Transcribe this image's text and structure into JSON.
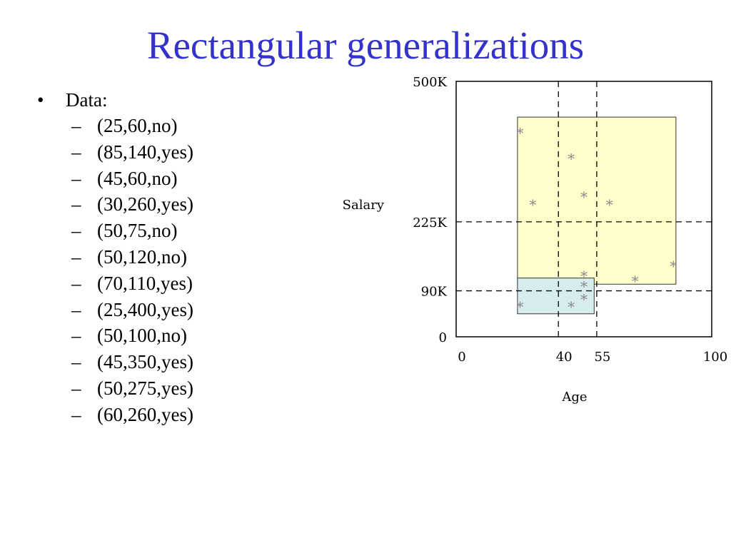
{
  "slide": {
    "title": "Rectangular generalizations",
    "bullet": {
      "marker": "•",
      "label": "Data:",
      "items": [
        "(25,60,no)",
        "(85,140,yes)",
        "(45,60,no)",
        "(30,260,yes)",
        "(50,75,no)",
        "(50,120,no)",
        "(70,110,yes)",
        "(25,400,yes)",
        "(50,100,no)",
        "(45,350,yes)",
        "(50,275,yes)",
        "(60,260,yes)"
      ]
    }
  },
  "chart_data": {
    "type": "scatter",
    "title": "",
    "xlabel": "Age",
    "ylabel": "Salary",
    "xlim": [
      0,
      100
    ],
    "ylim": [
      0,
      500
    ],
    "x_ticks": [
      {
        "value": 0,
        "label": "0"
      },
      {
        "value": 40,
        "label": "40"
      },
      {
        "value": 55,
        "label": "55"
      },
      {
        "value": 100,
        "label": "100"
      }
    ],
    "y_ticks": [
      {
        "value": 0,
        "label": "0"
      },
      {
        "value": 90,
        "label": "90K"
      },
      {
        "value": 225,
        "label": "225K"
      },
      {
        "value": 500,
        "label": "500K"
      }
    ],
    "dashed_lines": {
      "x": [
        40,
        55
      ],
      "y": [
        90,
        225
      ]
    },
    "marker": "*",
    "grid": false,
    "legend": "none",
    "colors": {
      "points": "#888888",
      "rect_yes_fill": "#ffffcc",
      "rect_no_fill": "#d6ecee",
      "axis": "#000000",
      "title": "#3333cc"
    },
    "rectangles": [
      {
        "name": "yes",
        "x0": 24,
        "x1": 86,
        "y0": 103,
        "y1": 430
      },
      {
        "name": "no",
        "x0": 24,
        "x1": 54,
        "y0": 45,
        "y1": 115
      }
    ],
    "points": [
      {
        "x": 25,
        "y": 60
      },
      {
        "x": 85,
        "y": 140
      },
      {
        "x": 45,
        "y": 60
      },
      {
        "x": 30,
        "y": 260
      },
      {
        "x": 50,
        "y": 75
      },
      {
        "x": 50,
        "y": 120
      },
      {
        "x": 70,
        "y": 110
      },
      {
        "x": 25,
        "y": 400
      },
      {
        "x": 50,
        "y": 100
      },
      {
        "x": 45,
        "y": 350
      },
      {
        "x": 50,
        "y": 275
      },
      {
        "x": 60,
        "y": 260
      }
    ]
  }
}
